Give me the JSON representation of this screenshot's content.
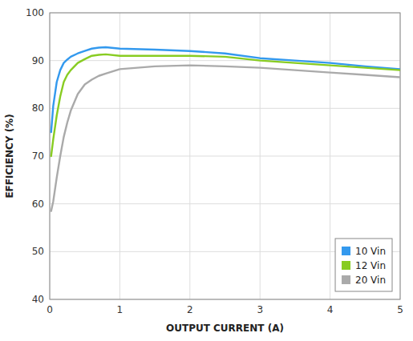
{
  "chart_data": {
    "type": "line",
    "xlabel": "OUTPUT CURRENT (A)",
    "ylabel": "EFFICIENCY (%)",
    "x": [
      0.02,
      0.05,
      0.1,
      0.15,
      0.2,
      0.25,
      0.3,
      0.4,
      0.5,
      0.6,
      0.7,
      0.8,
      1.0,
      1.5,
      2.0,
      2.5,
      3.0,
      3.5,
      4.0,
      4.5,
      5.0
    ],
    "series": [
      {
        "name": "10 Vin",
        "color": "#3399ee",
        "values": [
          75.0,
          80.5,
          85.5,
          88.0,
          89.5,
          90.2,
          90.8,
          91.5,
          92.0,
          92.5,
          92.7,
          92.8,
          92.5,
          92.3,
          92.0,
          91.5,
          90.5,
          90.0,
          89.5,
          88.8,
          88.2
        ]
      },
      {
        "name": "12 Vin",
        "color": "#88cc22",
        "values": [
          70.0,
          73.5,
          78.5,
          82.5,
          85.5,
          87.0,
          88.0,
          89.5,
          90.3,
          91.0,
          91.2,
          91.3,
          91.0,
          91.0,
          91.0,
          90.8,
          90.0,
          89.5,
          89.0,
          88.5,
          88.0
        ]
      },
      {
        "name": "20 Vin",
        "color": "#aaaaaa",
        "values": [
          58.5,
          60.5,
          65.5,
          70.0,
          74.0,
          77.0,
          79.5,
          83.0,
          85.0,
          86.0,
          86.8,
          87.3,
          88.2,
          88.8,
          89.0,
          88.8,
          88.5,
          88.0,
          87.5,
          87.0,
          86.5
        ]
      }
    ],
    "xlim": [
      0,
      5
    ],
    "ylim": [
      40,
      100
    ],
    "xticks": [
      0,
      1,
      2,
      3,
      4,
      5
    ],
    "yticks": [
      40,
      50,
      60,
      70,
      80,
      90,
      100
    ],
    "grid": true,
    "legend": "lower right"
  }
}
